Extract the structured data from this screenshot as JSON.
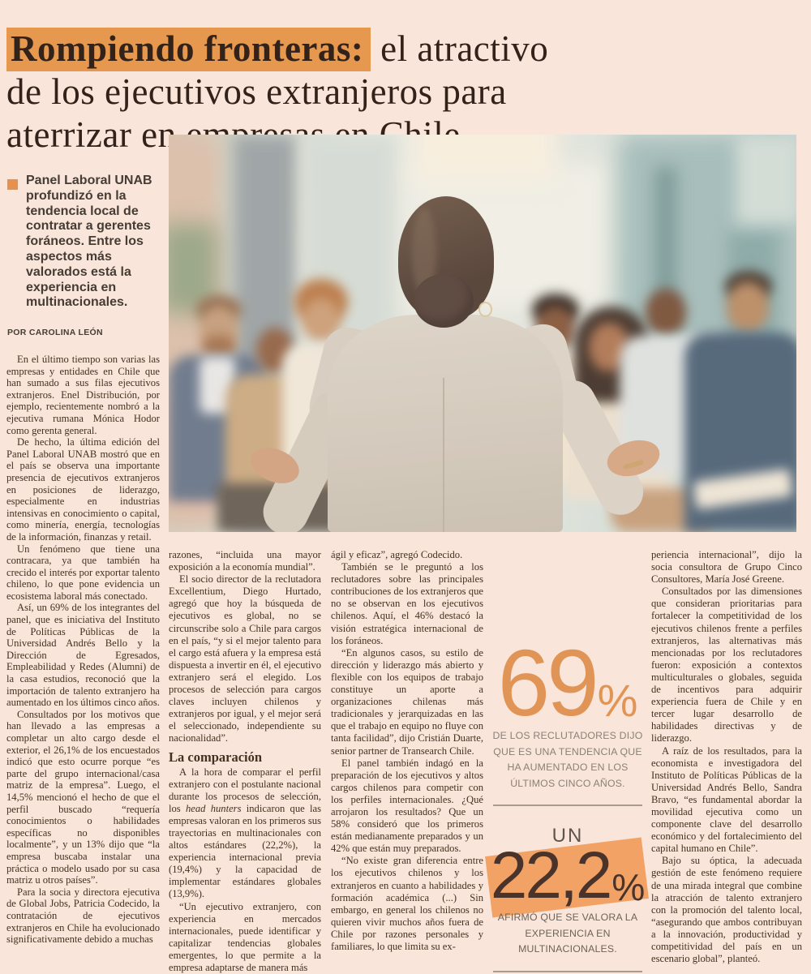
{
  "colors": {
    "page_background": "#f9e5d9",
    "headline_highlight": "#e5984e",
    "headline_text": "#33221a",
    "body_text": "#45301f",
    "stat_orange": "#e09455",
    "stat_band_orange": "#f2a265",
    "stat_caption_gray": "#8a8177",
    "bullet_orange": "#e8914c"
  },
  "headline": {
    "highlight": "Rompiendo fronteras:",
    "line1_rest": " el atractivo",
    "line2": "de los ejecutivos extranjeros para",
    "line3": "aterrizar en empresas en Chile"
  },
  "standfirst": "Panel Laboral UNAB profundizó en la tendencia local de contratar a gerentes foráneos. Entre los aspectos más valorados está la experiencia en multinacionales.",
  "byline": "POR CAROLINA LEÓN",
  "photo": {
    "description": "Mujer de espaldas con blazer gris presentando ante un grupo de personas sentadas en una oficina"
  },
  "columns": {
    "col1": {
      "paras": [
        "En el último tiempo son varias las empresas y entidades en Chile que han sumado a sus filas ejecutivos extranjeros. Enel Distribución, por ejemplo, recientemente nombró a la ejecutiva rumana Mónica Hodor como gerenta general.",
        "De hecho, la última edición del Panel Laboral UNAB mostró que en el país se observa una importante presencia de ejecutivos extranjeros en posiciones de liderazgo, especialmente en industrias intensivas en conocimiento o capital, como minería, energía, tecnologías de la información, finanzas y retail.",
        "Un fenómeno que tiene una contracara, ya que también ha crecido el interés por exportar talento chileno, lo que pone evidencia un ecosistema laboral más conectado.",
        "Así, un 69% de los integrantes del panel, que es iniciativa del Instituto de Políticas Públicas de la Universidad Andrés Bello y la Dirección de Egresados, Empleabilidad y Redes (Alumni) de la casa estudios, reconoció que la importación de talento extranjero ha aumentado en los últimos cinco años.",
        "Consultados por los motivos que han llevado a las empresas a completar un alto cargo desde el exterior, el 26,1% de los encuestados indicó que esto ocurre porque “es parte del grupo internacional/casa matriz de la empresa”. Luego, el 14,5% mencionó el hecho de que el perfil buscado “requería conocimientos o habilidades específicas no disponibles localmente”, y un 13% dijo que “la empresa buscaba instalar una práctica o modelo usado por su casa matriz u otros países”.",
        "Para la socia y directora ejecutiva de Global Jobs, Patricia Codecido, la contratación de ejecutivos extranjeros en Chile ha evolucionado significativamente debido a muchas"
      ]
    },
    "col2": {
      "para1": "razones, “incluida una mayor exposición a la economía mundial”.",
      "para2": "El socio director de la reclutadora Excellentium, Diego Hurtado, agregó que hoy la búsqueda de ejecutivos es global, no se circunscribe solo a Chile para cargos en el país, “y si el mejor talento para el cargo está afuera y la empresa está dispuesta a invertir en él, el ejecutivo extranjero será el elegido. Los procesos de selección para cargos claves incluyen chilenos y extranjeros por igual, y el mejor será el seleccionado, independiente su nacionalidad”.",
      "subhead": "La comparación",
      "para3_before": "A la hora de comparar el perfil extranjero con el postulante nacional durante los procesos de selección, los ",
      "para3_italic": "head hunters",
      "para3_after": " indicaron que las empresas valoran en los primeros sus trayectorias en multinacionales con altos estándares (22,2%), la experiencia internacional previa (19,4%) y la capacidad de implementar estándares globales (13,9%).",
      "para4": "“Un ejecutivo extranjero, con experiencia en mercados internacionales, puede identificar y capitalizar tendencias globales emergentes, lo que permite a la empresa adaptarse de manera más"
    },
    "col3": {
      "paras": [
        "ágil y eficaz”, agregó Codecido.",
        "También se le preguntó a los reclutadores sobre las principales contribuciones de los extranjeros que no se observan en los ejecutivos chilenos. Aquí, el 46% destacó la visión estratégica internacional de los foráneos.",
        "“En algunos casos, su estilo de dirección y liderazgo más abierto y flexible con los equipos de trabajo constituye un aporte a organizaciones chilenas más tradicionales y jerarquizadas en las que el trabajo en equipo no fluye con tanta facilidad”, dijo Cristián Duarte, senior partner de Transearch Chile.",
        "El panel también indagó en la preparación de los ejecutivos y altos cargos chilenos para competir con los perfiles internacionales. ¿Qué arrojaron los resultados? Que un 58% consideró que los primeros están medianamente preparados y un 42% que están muy preparados.",
        "“No existe gran diferencia entre los ejecutivos chilenos y los extranjeros en cuanto a habilidades y formación académica (...) Sin embargo, en general los chilenos no quieren vivir muchos años fuera de Chile por razones personales y familiares, lo que limita su ex-"
      ]
    },
    "col4": {
      "paras": [
        "periencia internacional”, dijo la socia consultora de Grupo Cinco Consultores, María José Greene.",
        "Consultados por las dimensiones que consideran prioritarias para fortalecer la competitividad de los ejecutivos chilenos frente a perfiles extranjeros, las alternativas más mencionadas por los reclutadores fueron: exposición a contextos multiculturales o globales, seguida de incentivos para adquirir experiencia fuera de Chile y en tercer lugar desarrollo de habilidades directivas y de liderazgo.",
        "A raíz de los resultados, para la economista e investigadora del Instituto de Políticas Públicas de la Universidad Andrés Bello, Sandra Bravo, “es fundamental abordar la movilidad ejecutiva como un componente clave del desarrollo económico y del fortalecimiento del capital humano en Chile”.",
        "Bajo su óptica, la adecuada gestión de este fenómeno requiere de una mirada integral que combine la atracción de talento extranjero con la promoción del talento local, “asegurando que ambos contribuyan a la innovación, productividad y competitividad del país en un escenario global”, planteó."
      ]
    }
  },
  "stats": {
    "stat1": {
      "value": "69",
      "percent": "%",
      "caption": "DE LOS RECLUTADORES DIJO QUE ES UNA TENDENCIA QUE HA AUMENTADO EN LOS ÚLTIMOS CINCO AÑOS."
    },
    "stat2": {
      "prefix": "UN",
      "value": "22,2",
      "percent": "%",
      "caption": "AFIRMÓ QUE SE VALORA LA EXPERIENCIA EN MULTINACIONALES."
    }
  }
}
